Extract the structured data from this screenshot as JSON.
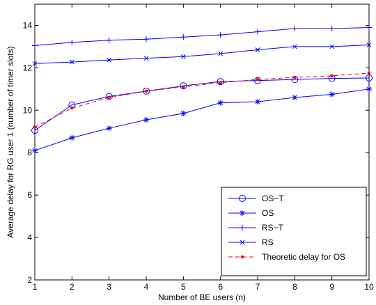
{
  "chart_data": {
    "type": "line",
    "title": "",
    "xlabel": "Number of BE users (n)",
    "ylabel": "Average delay for RG user 1 (number of timer slots)",
    "xlim": [
      1,
      10
    ],
    "ylim": [
      2,
      15
    ],
    "x_ticks": [
      1,
      2,
      3,
      4,
      5,
      6,
      7,
      8,
      9,
      10
    ],
    "y_ticks": [
      2,
      4,
      6,
      8,
      10,
      12,
      14
    ],
    "grid": false,
    "legend_position": "bottom-right",
    "x": [
      1,
      2,
      3,
      4,
      5,
      6,
      7,
      8,
      9,
      10
    ],
    "series": [
      {
        "name": "OS−T",
        "marker": "circle",
        "line": "solid",
        "color": "#0000ff",
        "values": [
          9.05,
          10.25,
          10.65,
          10.9,
          11.15,
          11.35,
          11.4,
          11.45,
          11.5,
          11.52
        ]
      },
      {
        "name": "OS",
        "marker": "star",
        "line": "solid",
        "color": "#0000ff",
        "values": [
          8.1,
          8.7,
          9.15,
          9.55,
          9.85,
          10.35,
          10.4,
          10.6,
          10.75,
          11.0
        ]
      },
      {
        "name": "RS−T",
        "marker": "plus",
        "line": "solid",
        "color": "#0000ff",
        "values": [
          13.05,
          13.2,
          13.3,
          13.35,
          13.45,
          13.55,
          13.7,
          13.85,
          13.85,
          13.9
        ]
      },
      {
        "name": "RS",
        "marker": "x",
        "line": "solid",
        "color": "#0000ff",
        "values": [
          12.2,
          12.27,
          12.37,
          12.45,
          12.53,
          12.67,
          12.85,
          13.0,
          13.0,
          13.08
        ]
      },
      {
        "name": "Theoretic delay for OS",
        "marker": "dot",
        "line": "dashed",
        "color": "#ff0000",
        "values": [
          9.2,
          10.1,
          10.6,
          10.9,
          11.1,
          11.3,
          11.45,
          11.55,
          11.62,
          11.75
        ]
      }
    ]
  }
}
